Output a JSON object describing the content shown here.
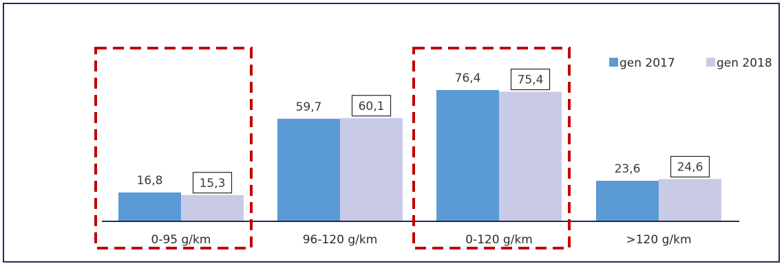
{
  "chart_data": {
    "type": "bar",
    "categories": [
      "0-95 g/km",
      "96-120 g/km",
      "0-120 g/km",
      ">120 g/km"
    ],
    "series": [
      {
        "name": "gen 2017",
        "color": "#5b9bd5",
        "values": [
          16.8,
          59.7,
          76.4,
          23.6
        ],
        "labels": [
          "16,8",
          "59,7",
          "76,4",
          "23,6"
        ]
      },
      {
        "name": "gen 2018",
        "color": "#c9cbe6",
        "values": [
          15.3,
          60.1,
          75.4,
          24.6
        ],
        "labels": [
          "15,3",
          "60,1",
          "75,4",
          "24,6"
        ]
      }
    ],
    "ylim": [
      0,
      100
    ],
    "grid": false,
    "legend": "top-right",
    "highlighted_categories": [
      "0-95 g/km",
      "0-120 g/km"
    ],
    "highlight_color": "#c00000",
    "boxed_series": "gen 2018"
  }
}
